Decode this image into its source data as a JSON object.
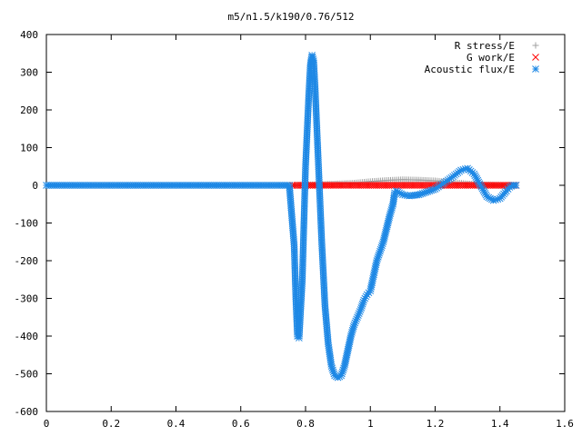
{
  "chart_data": {
    "type": "scatter",
    "title": "m5/n1.5/k190/0.76/512",
    "xlabel": "",
    "ylabel": "",
    "xlim": [
      0,
      1.6
    ],
    "ylim": [
      -600,
      400
    ],
    "xticks": [
      "0",
      "0.2",
      "0.4",
      "0.6",
      "0.8",
      "1",
      "1.2",
      "1.4",
      "1.6"
    ],
    "yticks": [
      "400",
      "300",
      "200",
      "100",
      "0",
      "-100",
      "-200",
      "-300",
      "-400",
      "-500",
      "-600"
    ],
    "xtick_values": [
      0,
      0.2,
      0.4,
      0.6,
      0.8,
      1.0,
      1.2,
      1.4,
      1.6
    ],
    "ytick_values": [
      400,
      300,
      200,
      100,
      0,
      -100,
      -200,
      -300,
      -400,
      -500,
      -600
    ],
    "grid": false,
    "legend_position": "top-right",
    "series": [
      {
        "name": "R stress/E",
        "marker": "plus",
        "color": "#a0a0a0",
        "x": [
          0.0,
          0.1,
          0.2,
          0.3,
          0.4,
          0.5,
          0.6,
          0.7,
          0.76,
          0.85,
          0.95,
          1.0,
          1.05,
          1.1,
          1.15,
          1.2,
          1.25,
          1.3,
          1.35,
          1.4,
          1.45
        ],
        "y": [
          0,
          0,
          0,
          0,
          0,
          0,
          0,
          0,
          0,
          2,
          6,
          10,
          13,
          15,
          14,
          12,
          8,
          4,
          1,
          0,
          0
        ]
      },
      {
        "name": "G work/E",
        "marker": "cross",
        "color": "#ff0000",
        "x": [
          0.76,
          0.8,
          0.85,
          0.9,
          0.95,
          1.0,
          1.05,
          1.1,
          1.15,
          1.2,
          1.25,
          1.3,
          1.35,
          1.4,
          1.45
        ],
        "y": [
          0,
          0,
          0,
          0,
          0,
          0,
          0,
          0,
          0,
          0,
          0,
          0,
          0,
          0,
          0
        ]
      },
      {
        "name": "Acoustic flux/E",
        "marker": "star",
        "color": "#1e88e5",
        "x": [
          0.0,
          0.1,
          0.2,
          0.3,
          0.4,
          0.5,
          0.6,
          0.7,
          0.75,
          0.765,
          0.77,
          0.775,
          0.78,
          0.79,
          0.8,
          0.81,
          0.815,
          0.82,
          0.825,
          0.83,
          0.835,
          0.84,
          0.85,
          0.86,
          0.87,
          0.88,
          0.89,
          0.9,
          0.91,
          0.92,
          0.93,
          0.94,
          0.95,
          0.96,
          0.97,
          0.98,
          0.99,
          1.0,
          1.02,
          1.04,
          1.06,
          1.07,
          1.075,
          1.08,
          1.09,
          1.1,
          1.12,
          1.15,
          1.2,
          1.25,
          1.28,
          1.3,
          1.32,
          1.34,
          1.36,
          1.38,
          1.4,
          1.42,
          1.43,
          1.44,
          1.45
        ],
        "y": [
          0,
          0,
          0,
          0,
          0,
          0,
          0,
          0,
          0,
          -160,
          -300,
          -400,
          -405,
          -250,
          50,
          240,
          320,
          345,
          330,
          250,
          150,
          50,
          -150,
          -320,
          -420,
          -480,
          -505,
          -510,
          -505,
          -480,
          -440,
          -400,
          -370,
          -350,
          -330,
          -305,
          -290,
          -280,
          -200,
          -150,
          -80,
          -50,
          -20,
          -15,
          -20,
          -25,
          -28,
          -25,
          -10,
          20,
          40,
          45,
          30,
          0,
          -30,
          -40,
          -35,
          -15,
          -5,
          0,
          0
        ]
      }
    ]
  }
}
